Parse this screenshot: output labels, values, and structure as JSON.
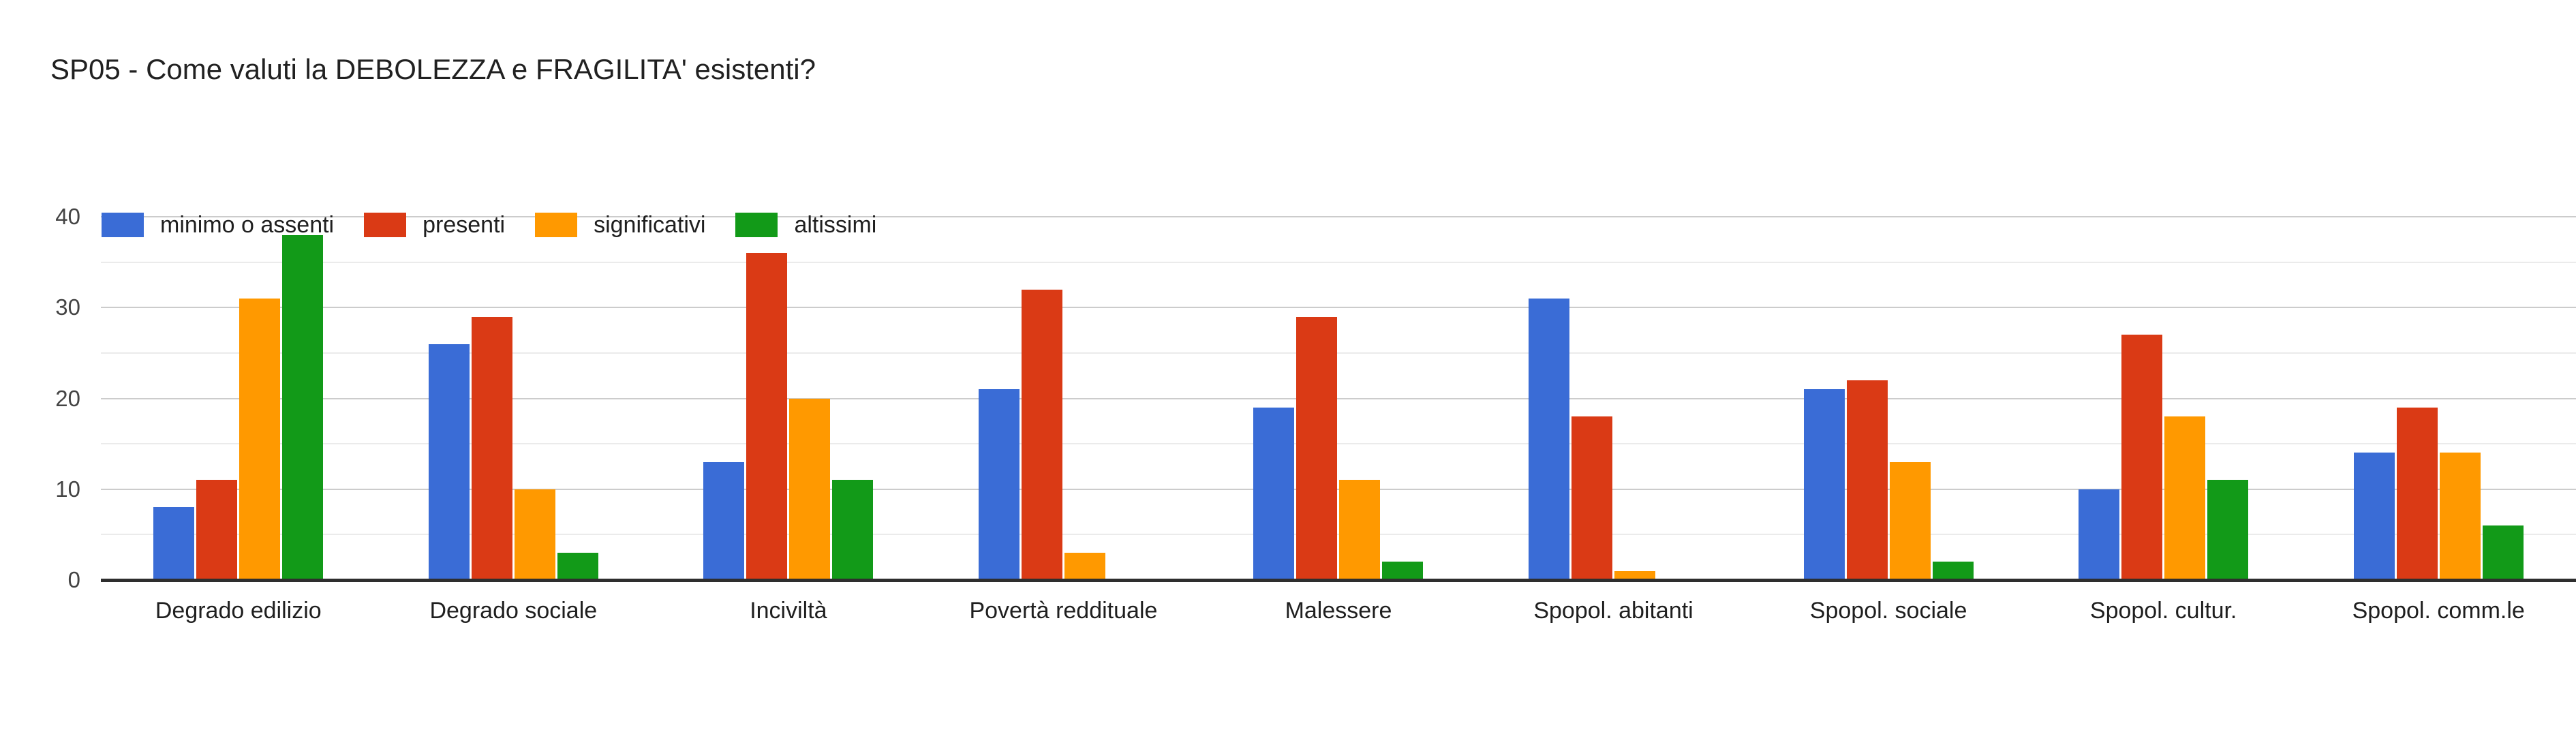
{
  "chart_data": {
    "type": "bar",
    "title": "SP05 - Come valuti la DEBOLEZZA e FRAGILITA' esistenti?",
    "categories": [
      "Degrado edilizio",
      "Degrado sociale",
      "Inciviltà",
      "Povertà reddituale",
      "Malessere",
      "Spopol. abitanti",
      "Spopol. sociale",
      "Spopol. cultur.",
      "Spopol. comm.le"
    ],
    "series": [
      {
        "name": "minimo o assenti",
        "color": "#3A6CD6",
        "values": [
          8,
          26,
          13,
          21,
          19,
          31,
          21,
          10,
          14
        ]
      },
      {
        "name": "presenti",
        "color": "#DA3A15",
        "values": [
          11,
          29,
          36,
          32,
          29,
          18,
          22,
          27,
          19
        ]
      },
      {
        "name": "significativi",
        "color": "#FF9900",
        "values": [
          31,
          10,
          20,
          3,
          11,
          1,
          13,
          18,
          14
        ]
      },
      {
        "name": "altissimi",
        "color": "#129A18",
        "values": [
          38,
          3,
          11,
          0,
          2,
          0,
          2,
          11,
          6
        ]
      }
    ],
    "ylim": [
      0,
      40
    ],
    "yticks": [
      0,
      10,
      20,
      30,
      40
    ],
    "minor_grid_step": 5,
    "grid": "on",
    "legend_position": "top-left",
    "styles": {
      "background": "#ffffff",
      "title_color": "#212121",
      "axis_line_color": "#2e2e2e",
      "major_grid_color": "#cccccc",
      "minor_grid_color": "#ebebeb",
      "tick_label_color": "#444444",
      "category_label_color": "#1f1f1f",
      "legend_label_color": "#1f1f1f"
    }
  }
}
